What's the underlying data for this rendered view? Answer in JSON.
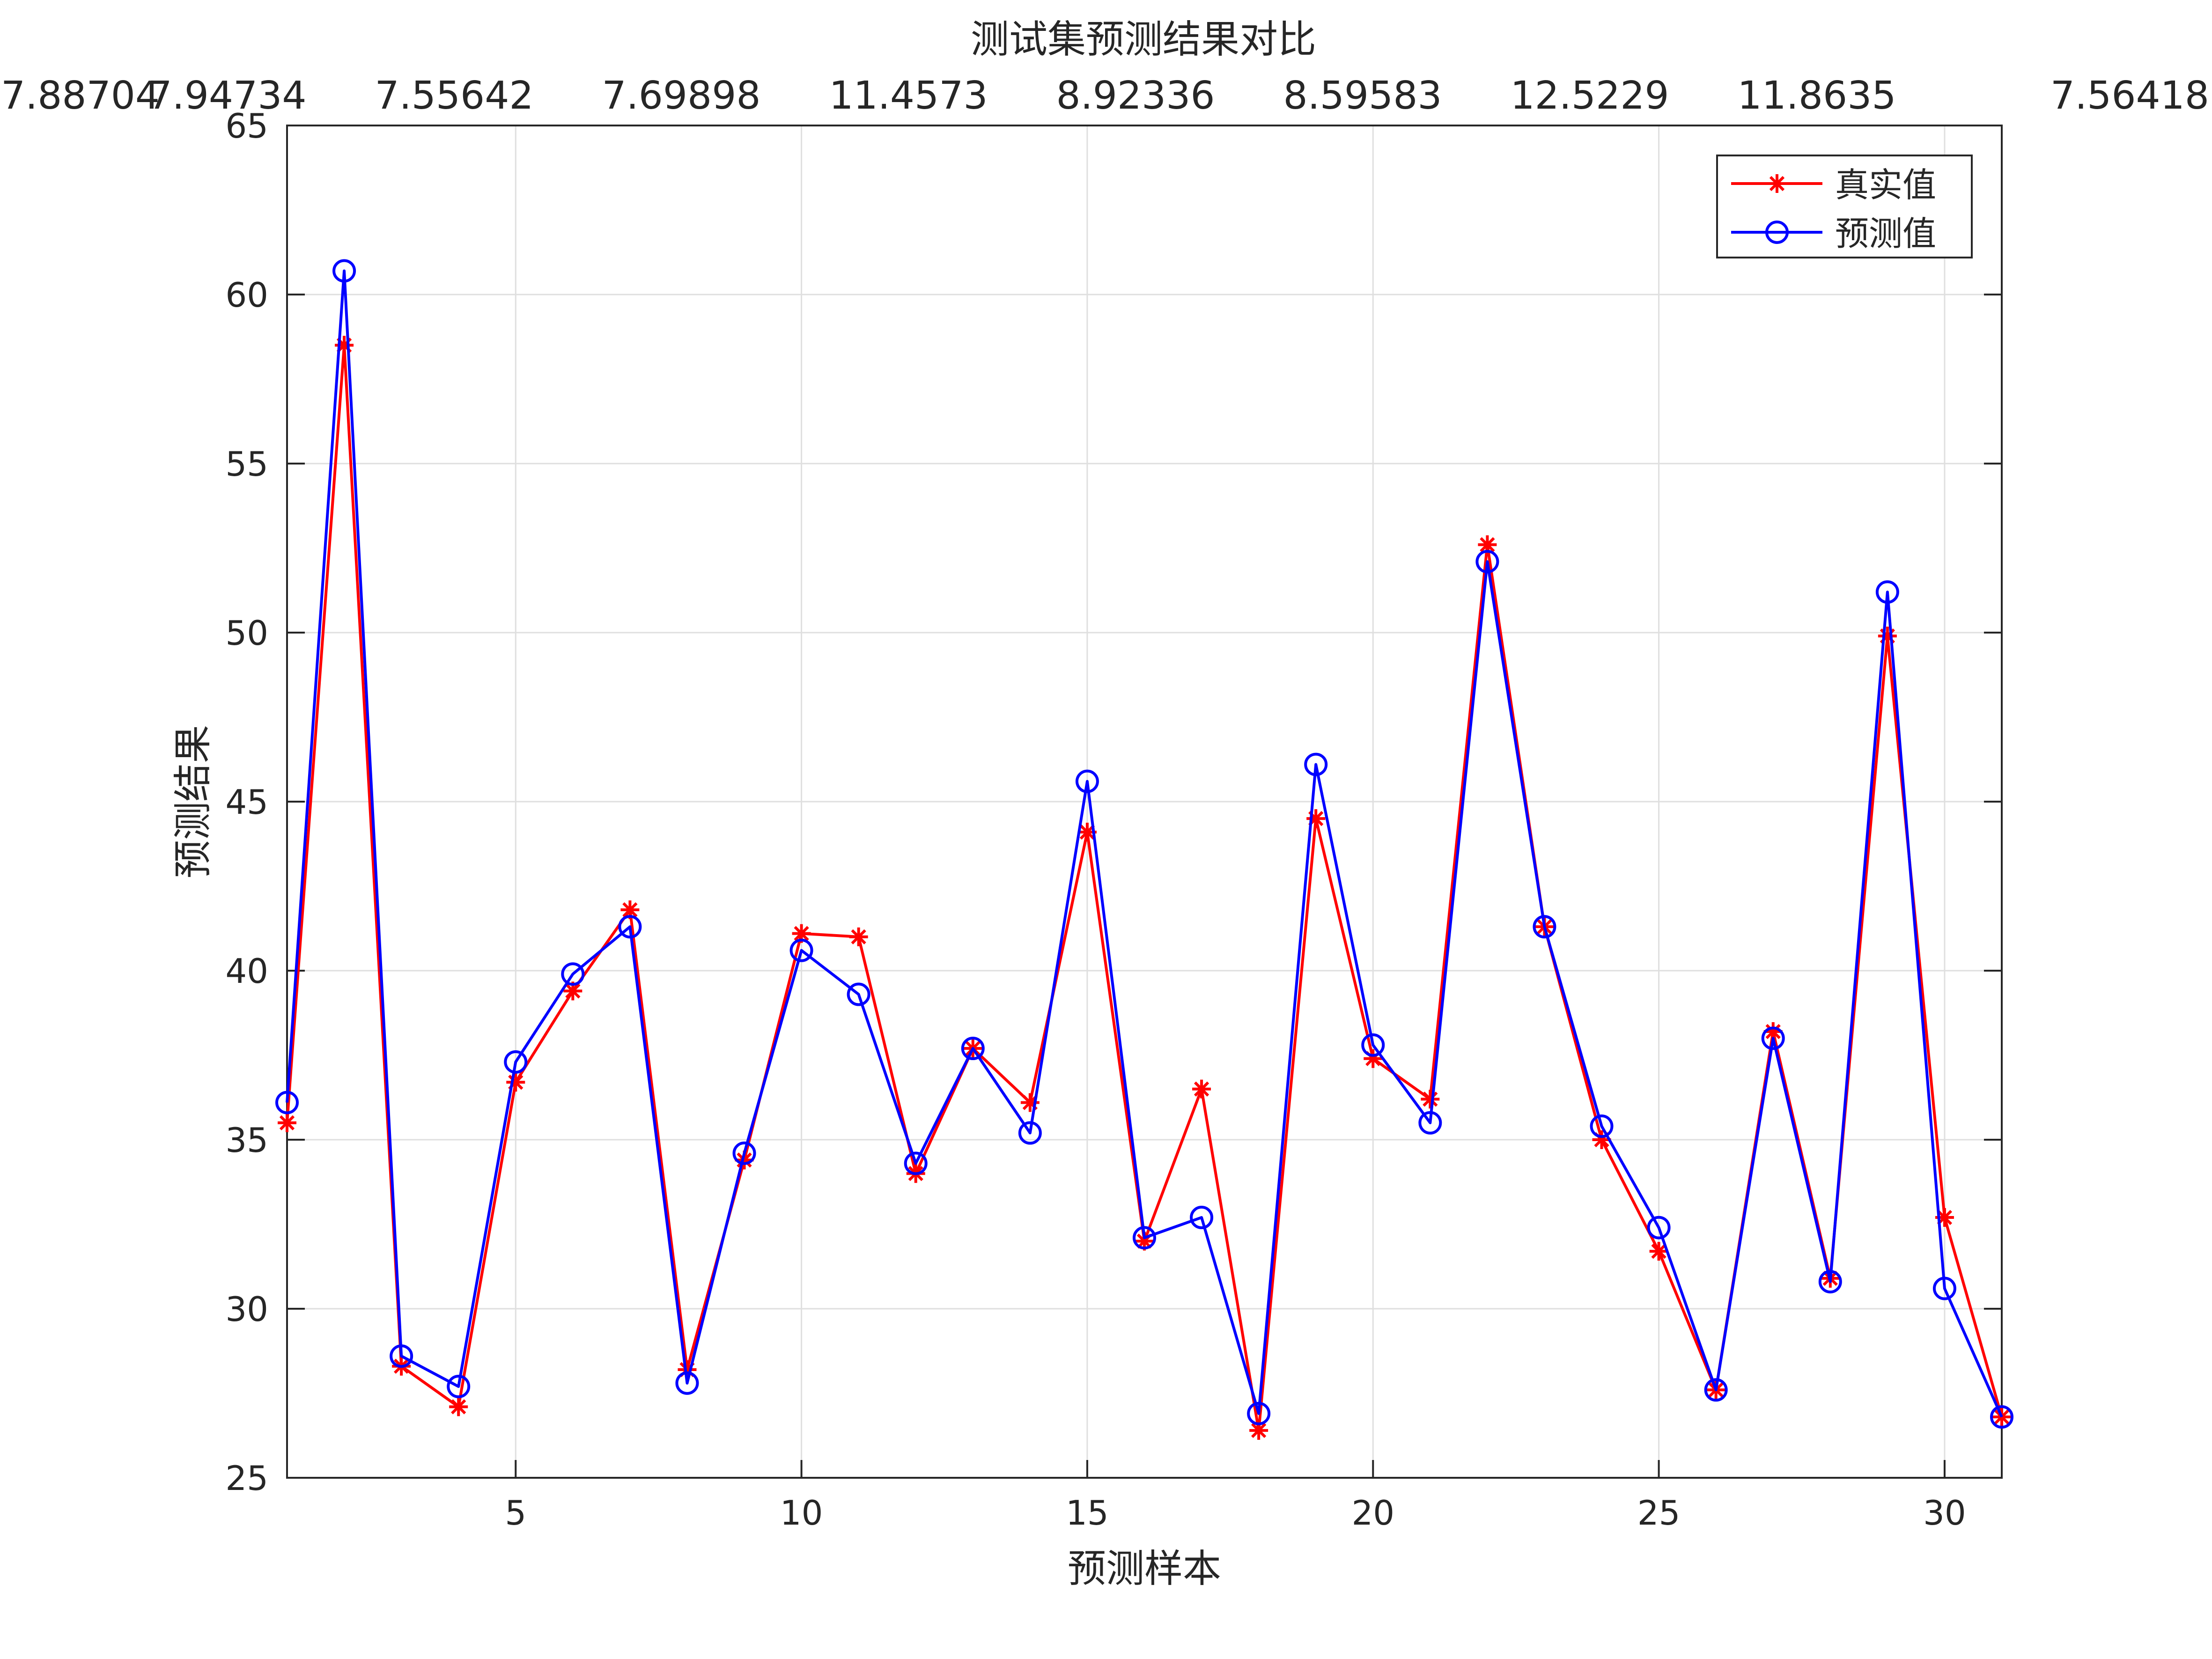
{
  "chart_data": {
    "type": "line",
    "title": "测试集预测结果对比",
    "xlabel": "预测样本",
    "ylabel": "预测结果",
    "xlim": [
      1,
      31
    ],
    "ylim": [
      25,
      65
    ],
    "grid": true,
    "legend_position": "top-right",
    "x_ticks": [
      5,
      10,
      15,
      20,
      25,
      30
    ],
    "y_ticks": [
      25,
      30,
      35,
      40,
      45,
      50,
      55,
      60,
      65
    ],
    "top_annotations": [
      {
        "x": 1,
        "label": "7.88704"
      },
      {
        "x": 3,
        "label": "7.94734"
      },
      {
        "x": 5,
        "label": "7.55642"
      },
      {
        "x": 7,
        "label": "7.69898"
      },
      {
        "x": 9,
        "label": "11.4573"
      },
      {
        "x": 11,
        "label": "8.92336"
      },
      {
        "x": 13,
        "label": "8.59583"
      },
      {
        "x": 15,
        "label": "12.5229"
      },
      {
        "x": 17,
        "label": "11.8635"
      },
      {
        "x": 19,
        "label": "7.56418"
      }
    ],
    "x": [
      1,
      2,
      3,
      4,
      5,
      6,
      7,
      8,
      9,
      10,
      11,
      12,
      13,
      14,
      15,
      16,
      17,
      18,
      19,
      20,
      21,
      22,
      23,
      24,
      25,
      26,
      27,
      28,
      29,
      30,
      31
    ],
    "series": [
      {
        "name": "真实值",
        "color": "#ff0000",
        "marker": "asterisk",
        "values": [
          35.5,
          58.5,
          28.3,
          27.1,
          36.7,
          39.4,
          41.8,
          28.2,
          34.4,
          41.1,
          41.0,
          34.0,
          37.7,
          36.1,
          44.1,
          32.0,
          36.5,
          26.4,
          44.5,
          37.4,
          36.2,
          52.6,
          41.3,
          35.0,
          31.7,
          27.6,
          38.2,
          30.9,
          49.9,
          32.7,
          26.8
        ]
      },
      {
        "name": "预测值",
        "color": "#0000ff",
        "marker": "circle",
        "values": [
          36.1,
          60.7,
          28.6,
          27.7,
          37.3,
          39.9,
          41.3,
          27.8,
          34.6,
          40.6,
          39.3,
          34.3,
          37.7,
          35.2,
          45.6,
          32.1,
          32.7,
          26.9,
          46.1,
          37.8,
          35.5,
          52.1,
          41.3,
          35.4,
          32.4,
          27.6,
          38.0,
          30.8,
          51.2,
          30.6,
          26.8
        ]
      }
    ]
  }
}
